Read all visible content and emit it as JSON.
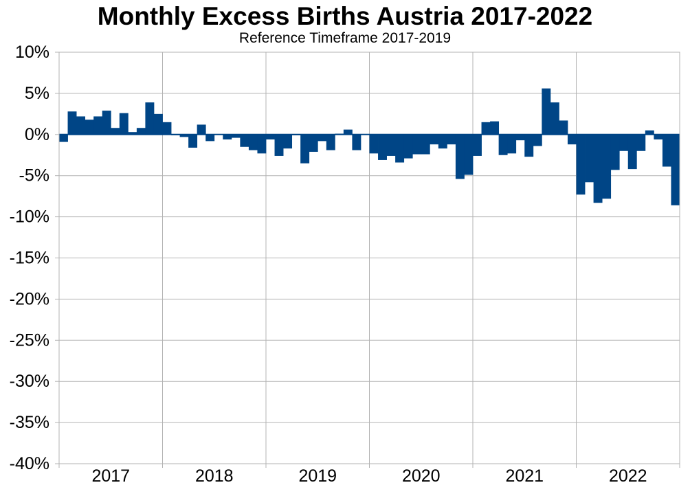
{
  "chart_data": {
    "type": "bar",
    "title": "Monthly Excess Births Austria 2017-2022",
    "subtitle": "Reference Timeframe 2017-2019",
    "xlabel": "",
    "ylabel": "",
    "ylim": [
      -40,
      10
    ],
    "y_ticks": [
      10,
      5,
      0,
      -5,
      -10,
      -15,
      -20,
      -25,
      -30,
      -35,
      -40
    ],
    "y_tick_labels": [
      "10%",
      "5%",
      "0%",
      "-5%",
      "-10%",
      "-15%",
      "-20%",
      "-25%",
      "-30%",
      "-35%",
      "-40%"
    ],
    "x_tick_labels": [
      "2017",
      "2018",
      "2019",
      "2020",
      "2021",
      "2022"
    ],
    "grid": true,
    "bar_color": "#004586",
    "series": [
      {
        "values": [
          -0.9,
          2.8,
          2.2,
          1.8,
          2.2,
          2.9,
          0.8,
          2.6,
          0.3,
          0.8,
          3.9,
          2.5,
          1.5,
          -0.1,
          -0.3,
          -1.6,
          1.2,
          -0.8,
          0.0,
          -0.6,
          -0.4,
          -1.5,
          -1.9,
          -2.3,
          -0.6,
          -2.6,
          -1.7,
          -0.1,
          -3.5,
          -2.1,
          -0.8,
          -1.9,
          0.1,
          0.6,
          -1.9,
          0.0,
          -2.3,
          -3.1,
          -2.6,
          -3.4,
          -2.9,
          -2.4,
          -2.4,
          -1.2,
          -1.7,
          -1.2,
          -5.4,
          -4.9,
          -2.6,
          1.5,
          1.6,
          -2.5,
          -2.3,
          -0.7,
          -2.7,
          -1.4,
          5.6,
          3.9,
          1.7,
          -1.2,
          -7.3,
          -5.8,
          -8.3,
          -7.8,
          -4.3,
          -2.0,
          -4.2,
          -2.0,
          0.5,
          -0.6,
          -3.9,
          -8.6
        ]
      }
    ]
  }
}
